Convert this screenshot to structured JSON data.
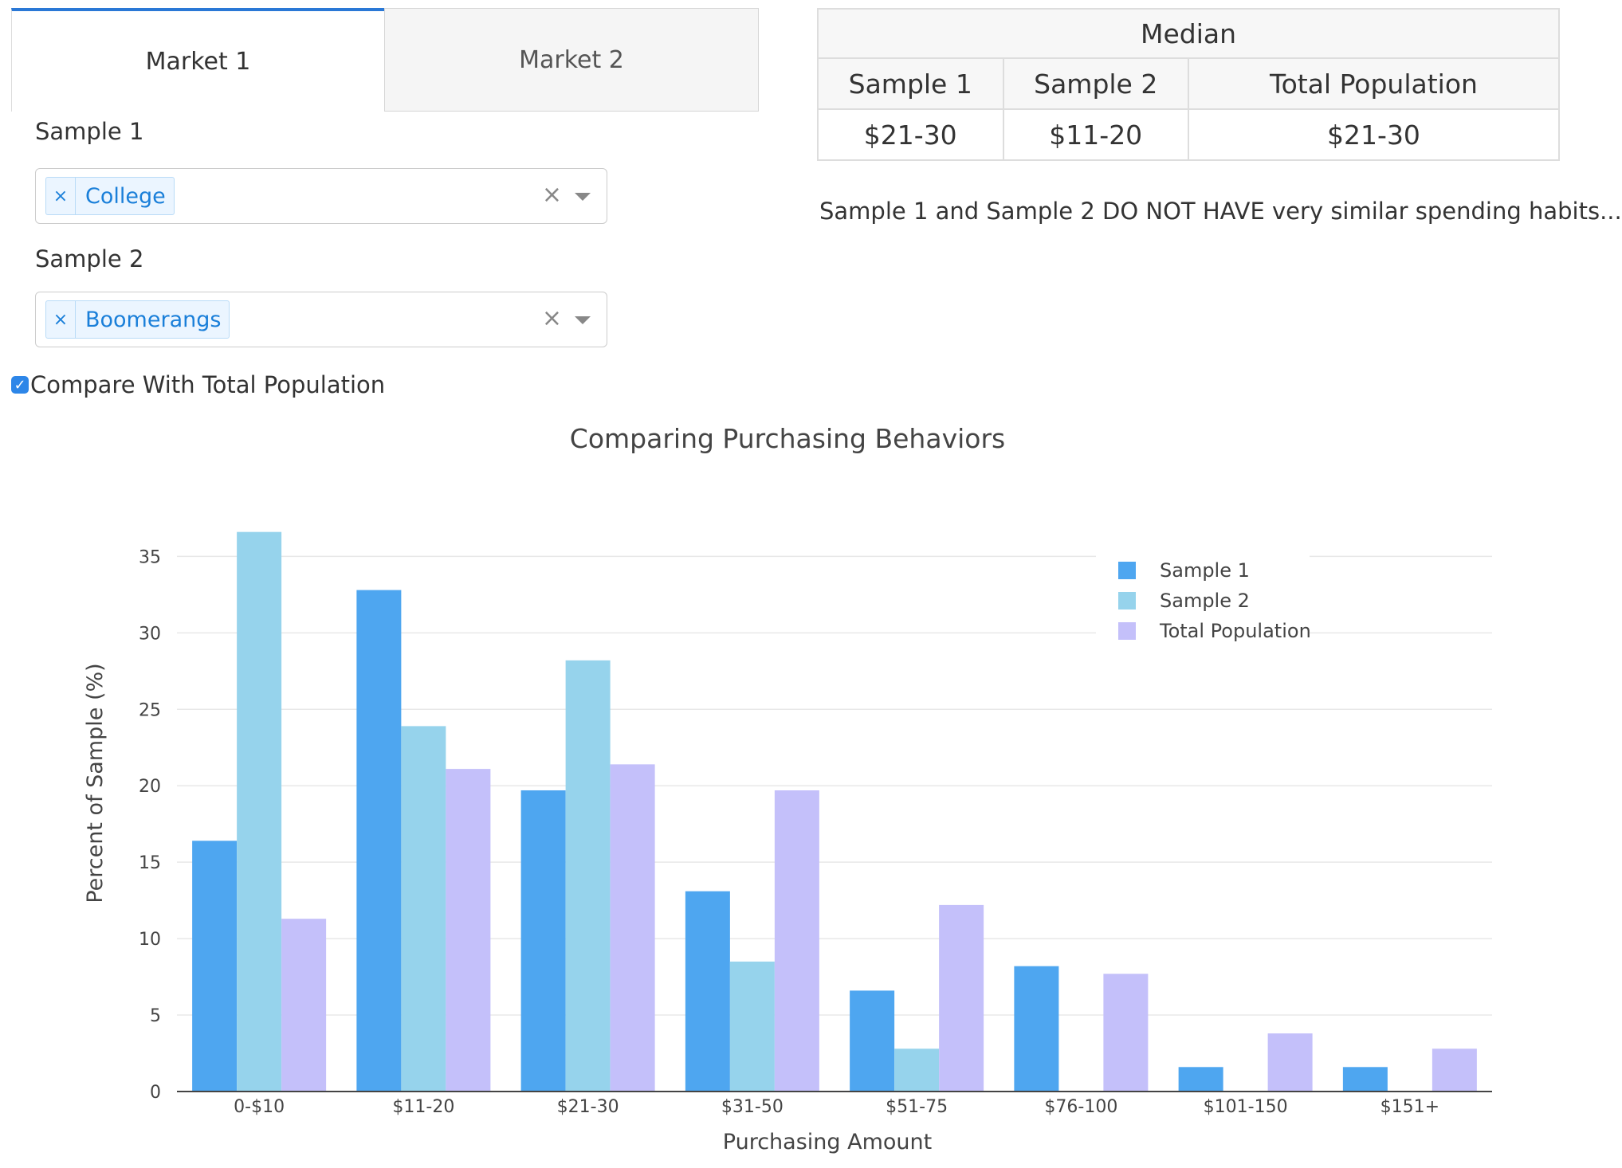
{
  "tabs": [
    {
      "label": "Market 1",
      "active": true
    },
    {
      "label": "Market 2",
      "active": false
    }
  ],
  "sample1": {
    "label": "Sample 1",
    "selected": "College"
  },
  "sample2": {
    "label": "Sample 2",
    "selected": "Boomerangs"
  },
  "compare": {
    "label": "Compare With Total Population",
    "checked": true
  },
  "median": {
    "title": "Median",
    "headers": [
      "Sample 1",
      "Sample 2",
      "Total Population"
    ],
    "values": [
      "$21-30",
      "$11-20",
      "$21-30"
    ]
  },
  "summary_text": "Sample 1 and Sample 2 DO NOT HAVE very similar spending habits...",
  "colors": {
    "sample1": "#4ea6f0",
    "sample2": "#96d3ec",
    "total": "#c4c0fa",
    "accent": "#2a78d6"
  },
  "chart_data": {
    "type": "bar",
    "title": "Comparing Purchasing Behaviors",
    "xlabel": "Purchasing Amount",
    "ylabel": "Percent of Sample (%)",
    "ylim": [
      0,
      37
    ],
    "yticks": [
      0,
      5,
      10,
      15,
      20,
      25,
      30,
      35
    ],
    "grid": true,
    "legend_position": "top-right",
    "categories": [
      "0-$10",
      "$11-20",
      "$21-30",
      "$31-50",
      "$51-75",
      "$76-100",
      "$101-150",
      "$151+"
    ],
    "series": [
      {
        "name": "Sample 1",
        "values": [
          16.4,
          32.8,
          19.7,
          13.1,
          6.6,
          8.2,
          1.6,
          1.6
        ]
      },
      {
        "name": "Sample 2",
        "values": [
          36.6,
          23.9,
          28.2,
          8.5,
          2.8,
          0,
          0,
          0
        ]
      },
      {
        "name": "Total Population",
        "values": [
          11.3,
          21.1,
          21.4,
          19.7,
          12.2,
          7.7,
          3.8,
          2.8
        ]
      }
    ]
  }
}
